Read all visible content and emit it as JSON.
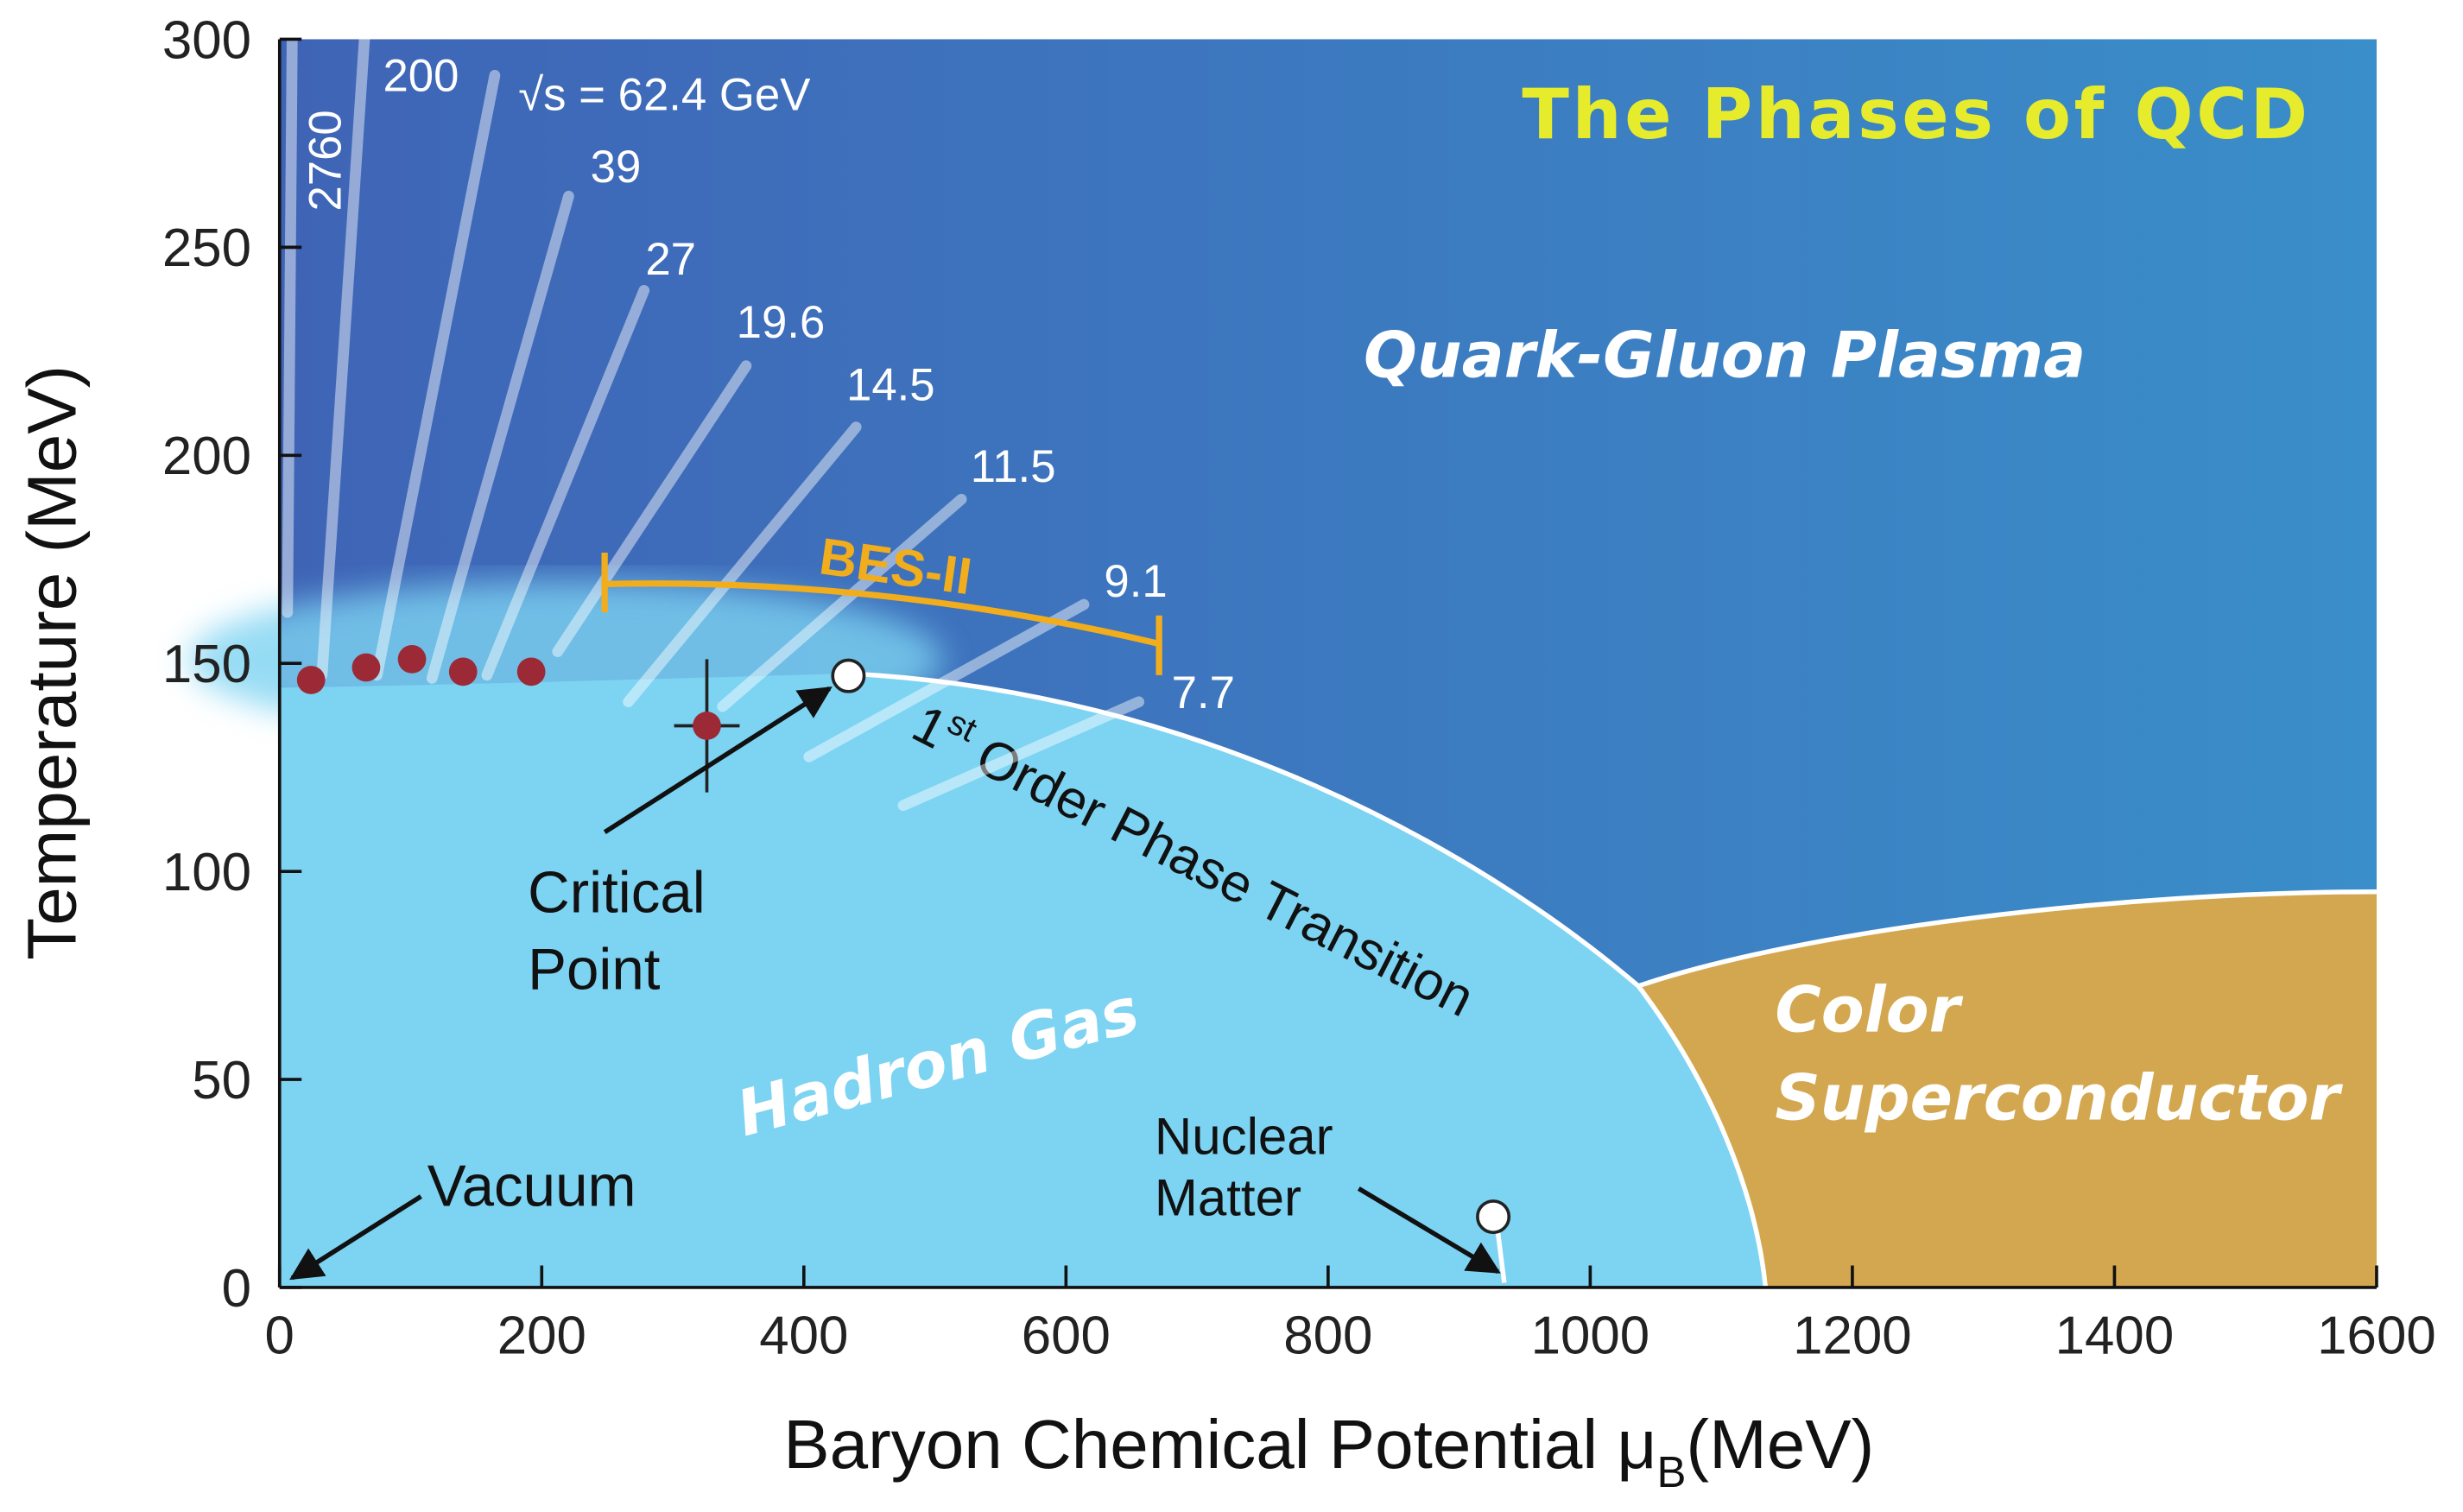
{
  "chart_data": {
    "type": "phase-diagram",
    "title": "The Phases of QCD",
    "x_label": {
      "text": "Baryon Chemical Potential μ",
      "sub": "B",
      "suffix": "(MeV)"
    },
    "y_label": "Temperature (MeV)",
    "xlim": [
      0,
      1600
    ],
    "ylim": [
      0,
      300
    ],
    "xticks": [
      0,
      200,
      400,
      600,
      800,
      1000,
      1200,
      1400,
      1600
    ],
    "yticks": [
      0,
      50,
      100,
      150,
      200,
      250,
      300
    ],
    "regions": {
      "qgp": "Quark-Gluon Plasma",
      "hadron": "Hadron Gas",
      "csc": [
        "Color",
        "Superconductor"
      ]
    },
    "colors": {
      "qgp": "#3f6cbb",
      "hadron": "#7dd3f2",
      "csc": "#d3a74f",
      "points": "#9b2a36",
      "bes": "#f2ad1c",
      "title": "#e6ec2c"
    },
    "transition_label": {
      "pre": "1",
      "sup": "st",
      "text": " Order Phase Transition"
    },
    "energies": [
      "2760",
      "200",
      "√s = 62.4 GeV",
      "39",
      "27",
      "19.6",
      "14.5",
      "11.5",
      "9.1",
      "7.7"
    ],
    "bes": {
      "label": "BES-II",
      "range": [
        248,
        671
      ]
    },
    "freeze_out": {
      "x": [
        24,
        66,
        101,
        140,
        192
      ],
      "y": [
        146,
        149,
        151,
        148,
        148
      ]
    },
    "estimate": {
      "x": 326,
      "y": 135,
      "xerr": 25,
      "yerr": 16
    },
    "critical_point": {
      "label": [
        "Critical",
        "Point"
      ],
      "x": 434,
      "y": 147
    },
    "nuclear_matter": {
      "label": [
        "Nuclear",
        "Matter"
      ],
      "x": 926,
      "y": 17
    },
    "vacuum": "Vacuum"
  }
}
